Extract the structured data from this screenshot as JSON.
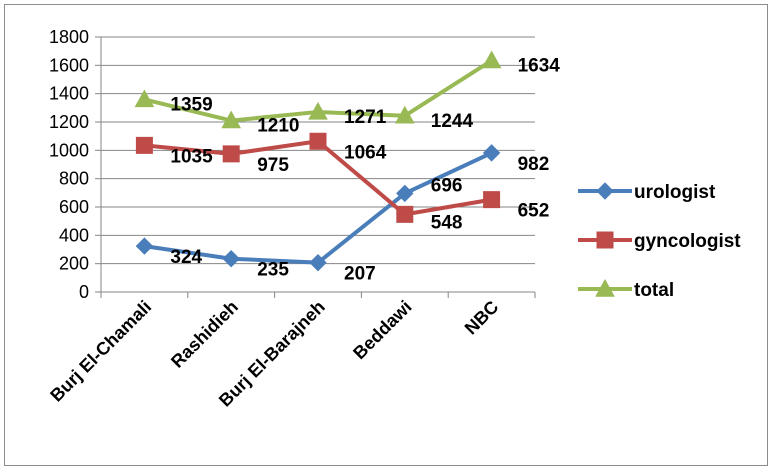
{
  "chart_data": {
    "type": "line",
    "title": "",
    "xlabel": "",
    "ylabel": "",
    "categories": [
      "Burj El-Chamali",
      "Rashidieh",
      "Burj El-Barajneh",
      "Beddawi",
      "NBC"
    ],
    "ylim": [
      0,
      1800
    ],
    "yticks": [
      "0",
      "200",
      "400",
      "600",
      "800",
      "1000",
      "1200",
      "1400",
      "1600",
      "1800"
    ],
    "grid": true,
    "legend_position": "right",
    "series": [
      {
        "name": "urologist",
        "values": [
          324,
          235,
          207,
          696,
          982
        ],
        "color": "#4a7ebb",
        "marker": "diamond"
      },
      {
        "name": "gyncologist",
        "values": [
          1035,
          975,
          1064,
          548,
          652
        ],
        "color": "#be4b48",
        "marker": "square"
      },
      {
        "name": "total",
        "values": [
          1359,
          1210,
          1271,
          1244,
          1634
        ],
        "color": "#98b954",
        "marker": "triangle"
      }
    ],
    "data_labels": [
      [
        "324",
        "235",
        "207",
        "696",
        "982"
      ],
      [
        "1035",
        "975",
        "1064",
        "548",
        "652"
      ],
      [
        "1359",
        "1210",
        "1271",
        "1244",
        "1634"
      ]
    ]
  }
}
